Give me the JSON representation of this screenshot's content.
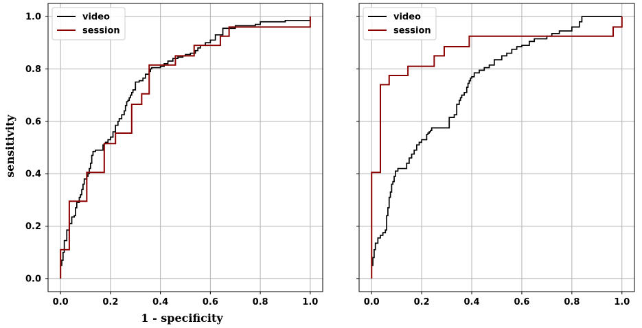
{
  "chart_data": [
    {
      "type": "line",
      "step": true,
      "xlabel": "1 - specificity",
      "ylabel": "sensitivity",
      "xlim": [
        -0.05,
        1.05
      ],
      "ylim": [
        -0.05,
        1.05
      ],
      "xticks": [
        "0.0",
        "0.2",
        "0.4",
        "0.6",
        "0.8",
        "1.0"
      ],
      "yticks": [
        "0.0",
        "0.2",
        "0.4",
        "0.6",
        "0.8",
        "1.0"
      ],
      "show_ytick_labels": true,
      "grid": true,
      "legend": "top-left",
      "series": [
        {
          "name": "video",
          "color": "#000000",
          "x": [
            0.0,
            0.0,
            0.005,
            0.01,
            0.015,
            0.025,
            0.035,
            0.045,
            0.055,
            0.06,
            0.065,
            0.075,
            0.08,
            0.085,
            0.09,
            0.095,
            0.105,
            0.11,
            0.115,
            0.12,
            0.125,
            0.13,
            0.14,
            0.17,
            0.175,
            0.18,
            0.19,
            0.2,
            0.21,
            0.22,
            0.23,
            0.235,
            0.245,
            0.255,
            0.26,
            0.265,
            0.27,
            0.275,
            0.28,
            0.285,
            0.29,
            0.3,
            0.315,
            0.33,
            0.34,
            0.355,
            0.36,
            0.365,
            0.4,
            0.415,
            0.43,
            0.45,
            0.47,
            0.49,
            0.5,
            0.52,
            0.54,
            0.55,
            0.56,
            0.58,
            0.6,
            0.62,
            0.65,
            0.7,
            0.78,
            0.8,
            0.9,
            1.0
          ],
          "y": [
            0.0,
            0.05,
            0.07,
            0.1,
            0.145,
            0.185,
            0.21,
            0.235,
            0.24,
            0.27,
            0.29,
            0.31,
            0.32,
            0.34,
            0.36,
            0.38,
            0.39,
            0.4,
            0.42,
            0.44,
            0.47,
            0.485,
            0.49,
            0.51,
            0.515,
            0.52,
            0.53,
            0.54,
            0.56,
            0.585,
            0.6,
            0.61,
            0.625,
            0.64,
            0.66,
            0.675,
            0.68,
            0.69,
            0.7,
            0.71,
            0.72,
            0.75,
            0.755,
            0.765,
            0.78,
            0.79,
            0.8,
            0.805,
            0.81,
            0.82,
            0.83,
            0.84,
            0.845,
            0.85,
            0.855,
            0.86,
            0.87,
            0.88,
            0.89,
            0.9,
            0.91,
            0.93,
            0.955,
            0.965,
            0.97,
            0.98,
            0.985,
            1.0
          ]
        },
        {
          "name": "session",
          "color": "#8b0000",
          "x": [
            0.0,
            0.0,
            0.035,
            0.105,
            0.175,
            0.175,
            0.22,
            0.285,
            0.325,
            0.355,
            0.355,
            0.46,
            0.46,
            0.535,
            0.64,
            0.675,
            1.0
          ],
          "y": [
            0.0,
            0.11,
            0.295,
            0.405,
            0.405,
            0.515,
            0.555,
            0.665,
            0.705,
            0.78,
            0.815,
            0.85,
            0.85,
            0.89,
            0.925,
            0.96,
            1.0
          ]
        }
      ]
    },
    {
      "type": "line",
      "step": true,
      "xlabel": "",
      "ylabel": "",
      "xlim": [
        -0.05,
        1.05
      ],
      "ylim": [
        -0.05,
        1.05
      ],
      "xticks": [
        "0.0",
        "0.2",
        "0.4",
        "0.6",
        "0.8",
        "1.0"
      ],
      "yticks": [
        "0.0",
        "0.2",
        "0.4",
        "0.6",
        "0.8",
        "1.0"
      ],
      "show_ytick_labels": false,
      "grid": true,
      "legend": "top-left",
      "series": [
        {
          "name": "video",
          "color": "#000000",
          "x": [
            0.0,
            0.005,
            0.01,
            0.015,
            0.025,
            0.035,
            0.045,
            0.055,
            0.06,
            0.065,
            0.07,
            0.075,
            0.08,
            0.085,
            0.09,
            0.095,
            0.105,
            0.14,
            0.15,
            0.16,
            0.17,
            0.18,
            0.19,
            0.2,
            0.22,
            0.225,
            0.23,
            0.235,
            0.24,
            0.31,
            0.33,
            0.34,
            0.35,
            0.355,
            0.36,
            0.37,
            0.38,
            0.385,
            0.39,
            0.395,
            0.4,
            0.41,
            0.43,
            0.45,
            0.47,
            0.49,
            0.52,
            0.54,
            0.56,
            0.58,
            0.6,
            0.63,
            0.65,
            0.7,
            0.72,
            0.75,
            0.8,
            0.83,
            0.84,
            1.0
          ],
          "y": [
            0.05,
            0.08,
            0.11,
            0.135,
            0.155,
            0.165,
            0.175,
            0.185,
            0.24,
            0.27,
            0.31,
            0.33,
            0.36,
            0.37,
            0.39,
            0.41,
            0.42,
            0.44,
            0.46,
            0.475,
            0.49,
            0.51,
            0.52,
            0.53,
            0.55,
            0.555,
            0.56,
            0.565,
            0.575,
            0.615,
            0.625,
            0.665,
            0.68,
            0.69,
            0.7,
            0.71,
            0.73,
            0.745,
            0.755,
            0.765,
            0.77,
            0.785,
            0.795,
            0.805,
            0.815,
            0.835,
            0.85,
            0.86,
            0.875,
            0.885,
            0.89,
            0.905,
            0.915,
            0.925,
            0.935,
            0.945,
            0.96,
            0.98,
            1.0,
            1.0
          ]
        },
        {
          "name": "session",
          "color": "#8b0000",
          "x": [
            0.0,
            0.0,
            0.035,
            0.07,
            0.145,
            0.25,
            0.29,
            0.39,
            0.71,
            0.965,
            1.0
          ],
          "y": [
            0.0,
            0.405,
            0.74,
            0.775,
            0.81,
            0.85,
            0.885,
            0.925,
            0.925,
            0.96,
            1.0
          ]
        }
      ]
    }
  ]
}
